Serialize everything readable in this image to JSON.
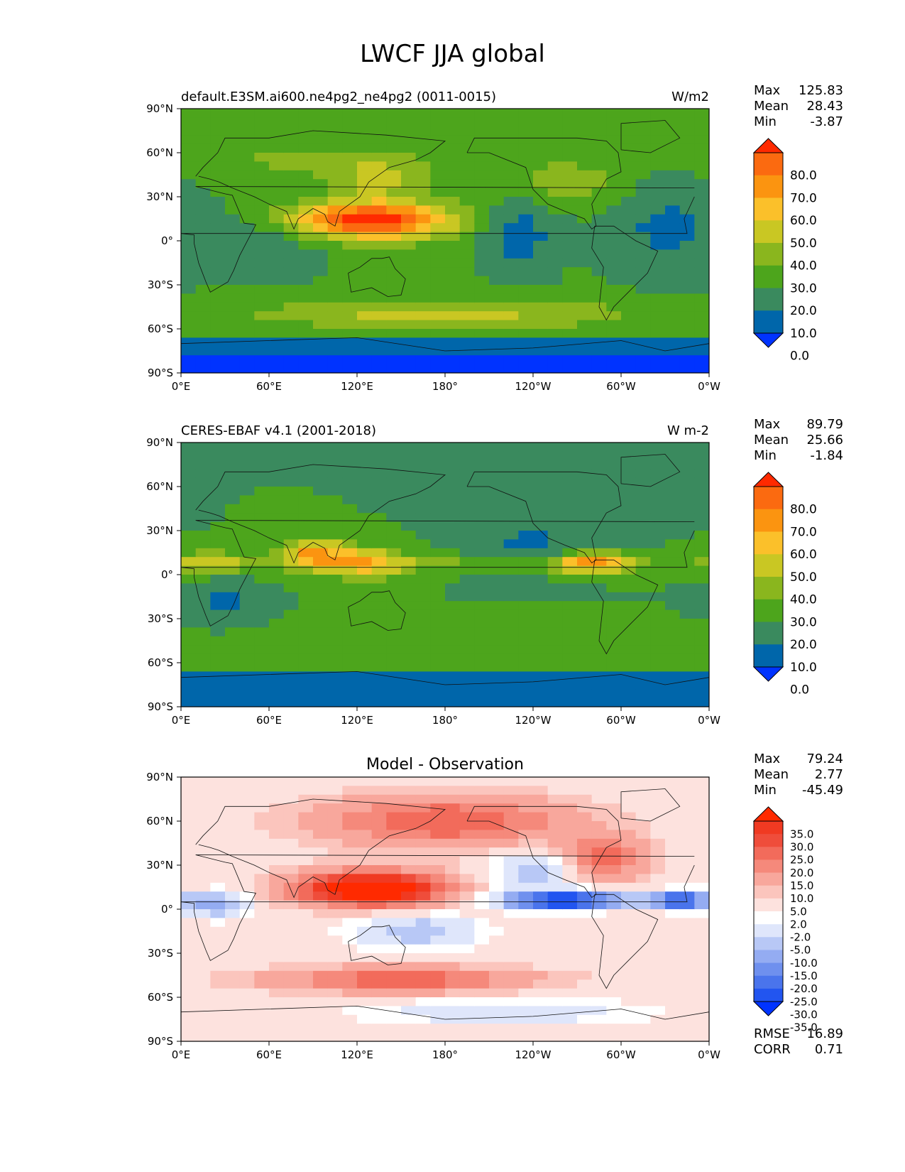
{
  "title": "LWCF JJA global",
  "x_ticks": [
    "0°E",
    "60°E",
    "120°E",
    "180°",
    "120°W",
    "60°W",
    "0°W"
  ],
  "y_ticks": [
    "90°N",
    "60°N",
    "30°N",
    "0°",
    "30°S",
    "60°S",
    "90°S"
  ],
  "stat_labels": {
    "max": "Max",
    "mean": "Mean",
    "min": "Min",
    "rmse": "RMSE",
    "corr": "CORR"
  },
  "colors": {
    "sequential": [
      "#0033ff",
      "#0066aa",
      "#3a8a5e",
      "#4da51c",
      "#8ab61e",
      "#c9c723",
      "#fbc02a",
      "#fb9410",
      "#fb6a10",
      "#ff2a00"
    ],
    "diverging": [
      "#0033ff",
      "#2255f0",
      "#4a74ec",
      "#6f90ee",
      "#94acf2",
      "#b8c8f6",
      "#dfe6fb",
      "#ffffff",
      "#fde2de",
      "#fbc5bd",
      "#f8a79c",
      "#f5897b",
      "#f26b5b",
      "#ef4d3b",
      "#f03a22",
      "#ff2a00"
    ]
  },
  "panels": [
    {
      "title_left": "default.E3SM.ai600.ne4pg2_ne4pg2 (0011-0015)",
      "units": "W/m2",
      "stats": {
        "max": "125.83",
        "mean": "28.43",
        "min": "-3.87"
      },
      "colorbar_labels": [
        "80.0",
        "70.0",
        "60.0",
        "50.0",
        "40.0",
        "30.0",
        "20.0",
        "10.0",
        "0.0"
      ]
    },
    {
      "title_left": "CERES-EBAF v4.1 (2001-2018)",
      "units": "W m-2",
      "stats": {
        "max": "89.79",
        "mean": "25.66",
        "min": "-1.84"
      },
      "colorbar_labels": [
        "80.0",
        "70.0",
        "60.0",
        "50.0",
        "40.0",
        "30.0",
        "20.0",
        "10.0",
        "0.0"
      ]
    },
    {
      "title_center": "Model - Observation",
      "stats": {
        "max": "79.24",
        "mean": "2.77",
        "min": "-45.49",
        "rmse": "16.89",
        "corr": "0.71"
      },
      "colorbar_labels": [
        "35.0",
        "30.0",
        "25.0",
        "20.0",
        "15.0",
        "10.0",
        "5.0",
        "2.0",
        "-2.0",
        "-5.0",
        "-10.0",
        "-15.0",
        "-20.0",
        "-25.0",
        "-30.0",
        "-35.0"
      ]
    }
  ]
}
